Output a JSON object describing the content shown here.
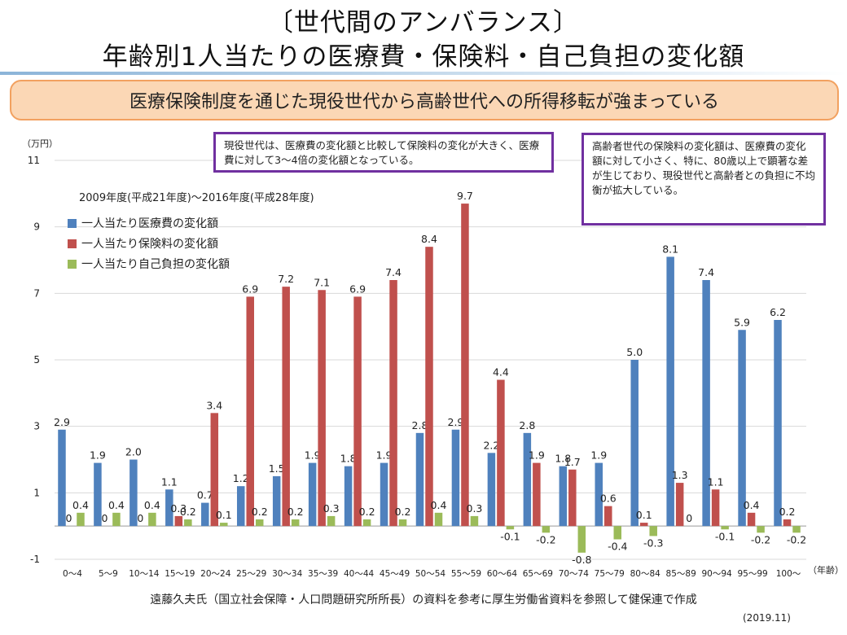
{
  "header": {
    "title_line1": "〔世代間のアンバランス〕",
    "title_line2": "年齢別1人当たりの医療費・保険料・自己負担の変化額",
    "banner": "医療保険制度を通じた現役世代から高齢世代への所得移転が強まっている"
  },
  "notes": {
    "left": "現役世代は、医療費の変化額と比較して保険料の変化が大きく、医療費に対して3～4倍の変化額となっている。",
    "right": "高齢者世代の保険料の変化額は、医療費の変化額に対して小さく、特に、80歳以上で顕著な差が生じており、現役世代と高齢者との負担に不均衡が拡大している。"
  },
  "legend": {
    "period": "2009年度(平成21年度)～2016年度(平成28年度)"
  },
  "footer": {
    "source": "遠藤久夫氏（国立社会保障・人口問題研究所所長）の資料を参考に厚生労働省資料を参照して健保連で作成",
    "date": "(2019.11)"
  },
  "colors": {
    "medical": "#4f81bd",
    "premium": "#c0504d",
    "copay": "#9bbb59",
    "banner_fill": "#fbd7b5",
    "banner_border": "#f2a160",
    "note_border": "#7030a0"
  },
  "chart_data": {
    "type": "bar",
    "ylabel": "（万円）",
    "xlabel": "（年齢）",
    "ylim": [
      -1,
      11
    ],
    "yticks": [
      -1,
      1,
      3,
      5,
      7,
      9,
      11
    ],
    "grid": true,
    "legend_position": "top-left",
    "categories": [
      "0～4",
      "5～9",
      "10～14",
      "15～19",
      "20～24",
      "25～29",
      "30～34",
      "35～39",
      "40～44",
      "45～49",
      "50～54",
      "55～59",
      "60～64",
      "65～69",
      "70～74",
      "75～79",
      "80～84",
      "85～89",
      "90～94",
      "95～99",
      "100～"
    ],
    "series": [
      {
        "name": "一人当たり医療費の変化額",
        "color": "#4f81bd",
        "values": [
          2.9,
          1.9,
          2.0,
          1.1,
          0.7,
          1.2,
          1.5,
          1.9,
          1.8,
          1.9,
          2.8,
          2.9,
          2.2,
          2.8,
          1.8,
          1.9,
          5.0,
          8.1,
          7.4,
          5.9,
          6.2
        ],
        "labels": [
          "2.9",
          "1.9",
          "2.0",
          "1.1",
          "0.7",
          "1.2",
          "1.5",
          "1.9",
          "1.8",
          "1.9",
          "2.8",
          "2.9",
          "2.2",
          "2.8",
          "1.8",
          "1.9",
          "5.0",
          "8.1",
          "7.4",
          "5.9",
          "6.2"
        ]
      },
      {
        "name": "一人当たり保険料の変化額",
        "color": "#c0504d",
        "values": [
          0,
          0,
          0,
          0.3,
          3.4,
          6.9,
          7.2,
          7.1,
          6.9,
          7.4,
          8.4,
          9.7,
          4.4,
          1.9,
          1.7,
          0.6,
          0.1,
          1.3,
          1.1,
          0.4,
          0.2
        ],
        "labels": [
          "0",
          "0",
          "0",
          "0.3",
          "3.4",
          "6.9",
          "7.2",
          "7.1",
          "6.9",
          "7.4",
          "8.4",
          "9.7",
          "4.4",
          "1.9",
          "1.7",
          "0.6",
          "0.1",
          "1.3",
          "1.1",
          "0.4",
          "0.2"
        ]
      },
      {
        "name": "一人当たり自己負担の変化額",
        "color": "#9bbb59",
        "values": [
          0.4,
          0.4,
          0.4,
          0.2,
          0.1,
          0.2,
          0.2,
          0.3,
          0.2,
          0.2,
          0.4,
          0.3,
          -0.1,
          -0.2,
          -0.8,
          -0.4,
          -0.3,
          0,
          -0.1,
          -0.2,
          -0.2
        ],
        "labels": [
          "0.4",
          "0.4",
          "0.4",
          "0.2",
          "0.1",
          "0.2",
          "0.2",
          "0.3",
          "0.2",
          "0.2",
          "0.4",
          "0.3",
          "-0.1",
          "-0.2",
          "-0.8",
          "-0.4",
          "-0.3",
          "0",
          "-0.1",
          "-0.2",
          "-0.2"
        ]
      }
    ]
  }
}
